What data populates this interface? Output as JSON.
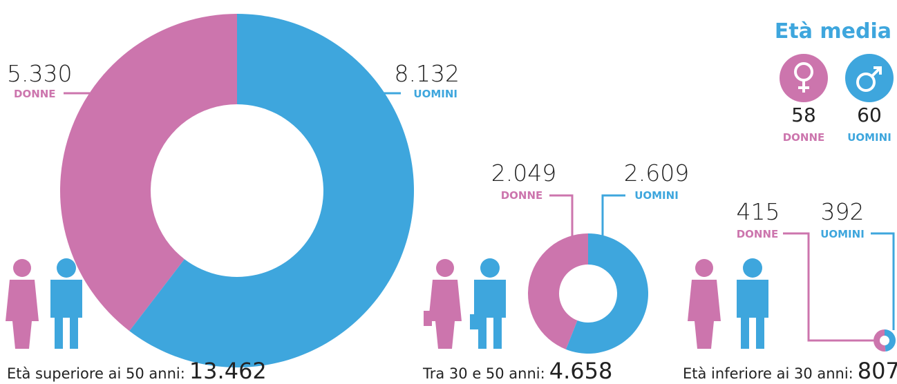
{
  "chart_data": [
    {
      "type": "donut",
      "title": "Età superiore ai 50 anni:",
      "total": "13.462",
      "categories": [
        "DONNE",
        "UOMINI"
      ],
      "values": [
        5330,
        8132
      ],
      "value_labels": [
        "5.330",
        "8.132"
      ],
      "colors": [
        "#cc75ad",
        "#3ea6dd"
      ]
    },
    {
      "type": "donut",
      "title": "Tra 30 e 50 anni:",
      "total": "4.658",
      "categories": [
        "DONNE",
        "UOMINI"
      ],
      "values": [
        2049,
        2609
      ],
      "value_labels": [
        "2.049",
        "2.609"
      ],
      "colors": [
        "#cc75ad",
        "#3ea6dd"
      ]
    },
    {
      "type": "donut",
      "title": "Età inferiore ai 30 anni:",
      "total": "807",
      "categories": [
        "DONNE",
        "UOMINI"
      ],
      "values": [
        415,
        392
      ],
      "value_labels": [
        "415",
        "392"
      ],
      "colors": [
        "#cc75ad",
        "#3ea6dd"
      ]
    }
  ],
  "average_age": {
    "title": "Età media",
    "labels": [
      "DONNE",
      "UOMINI"
    ],
    "values": [
      58,
      60
    ],
    "colors": [
      "#cc75ad",
      "#3ea6dd"
    ]
  }
}
